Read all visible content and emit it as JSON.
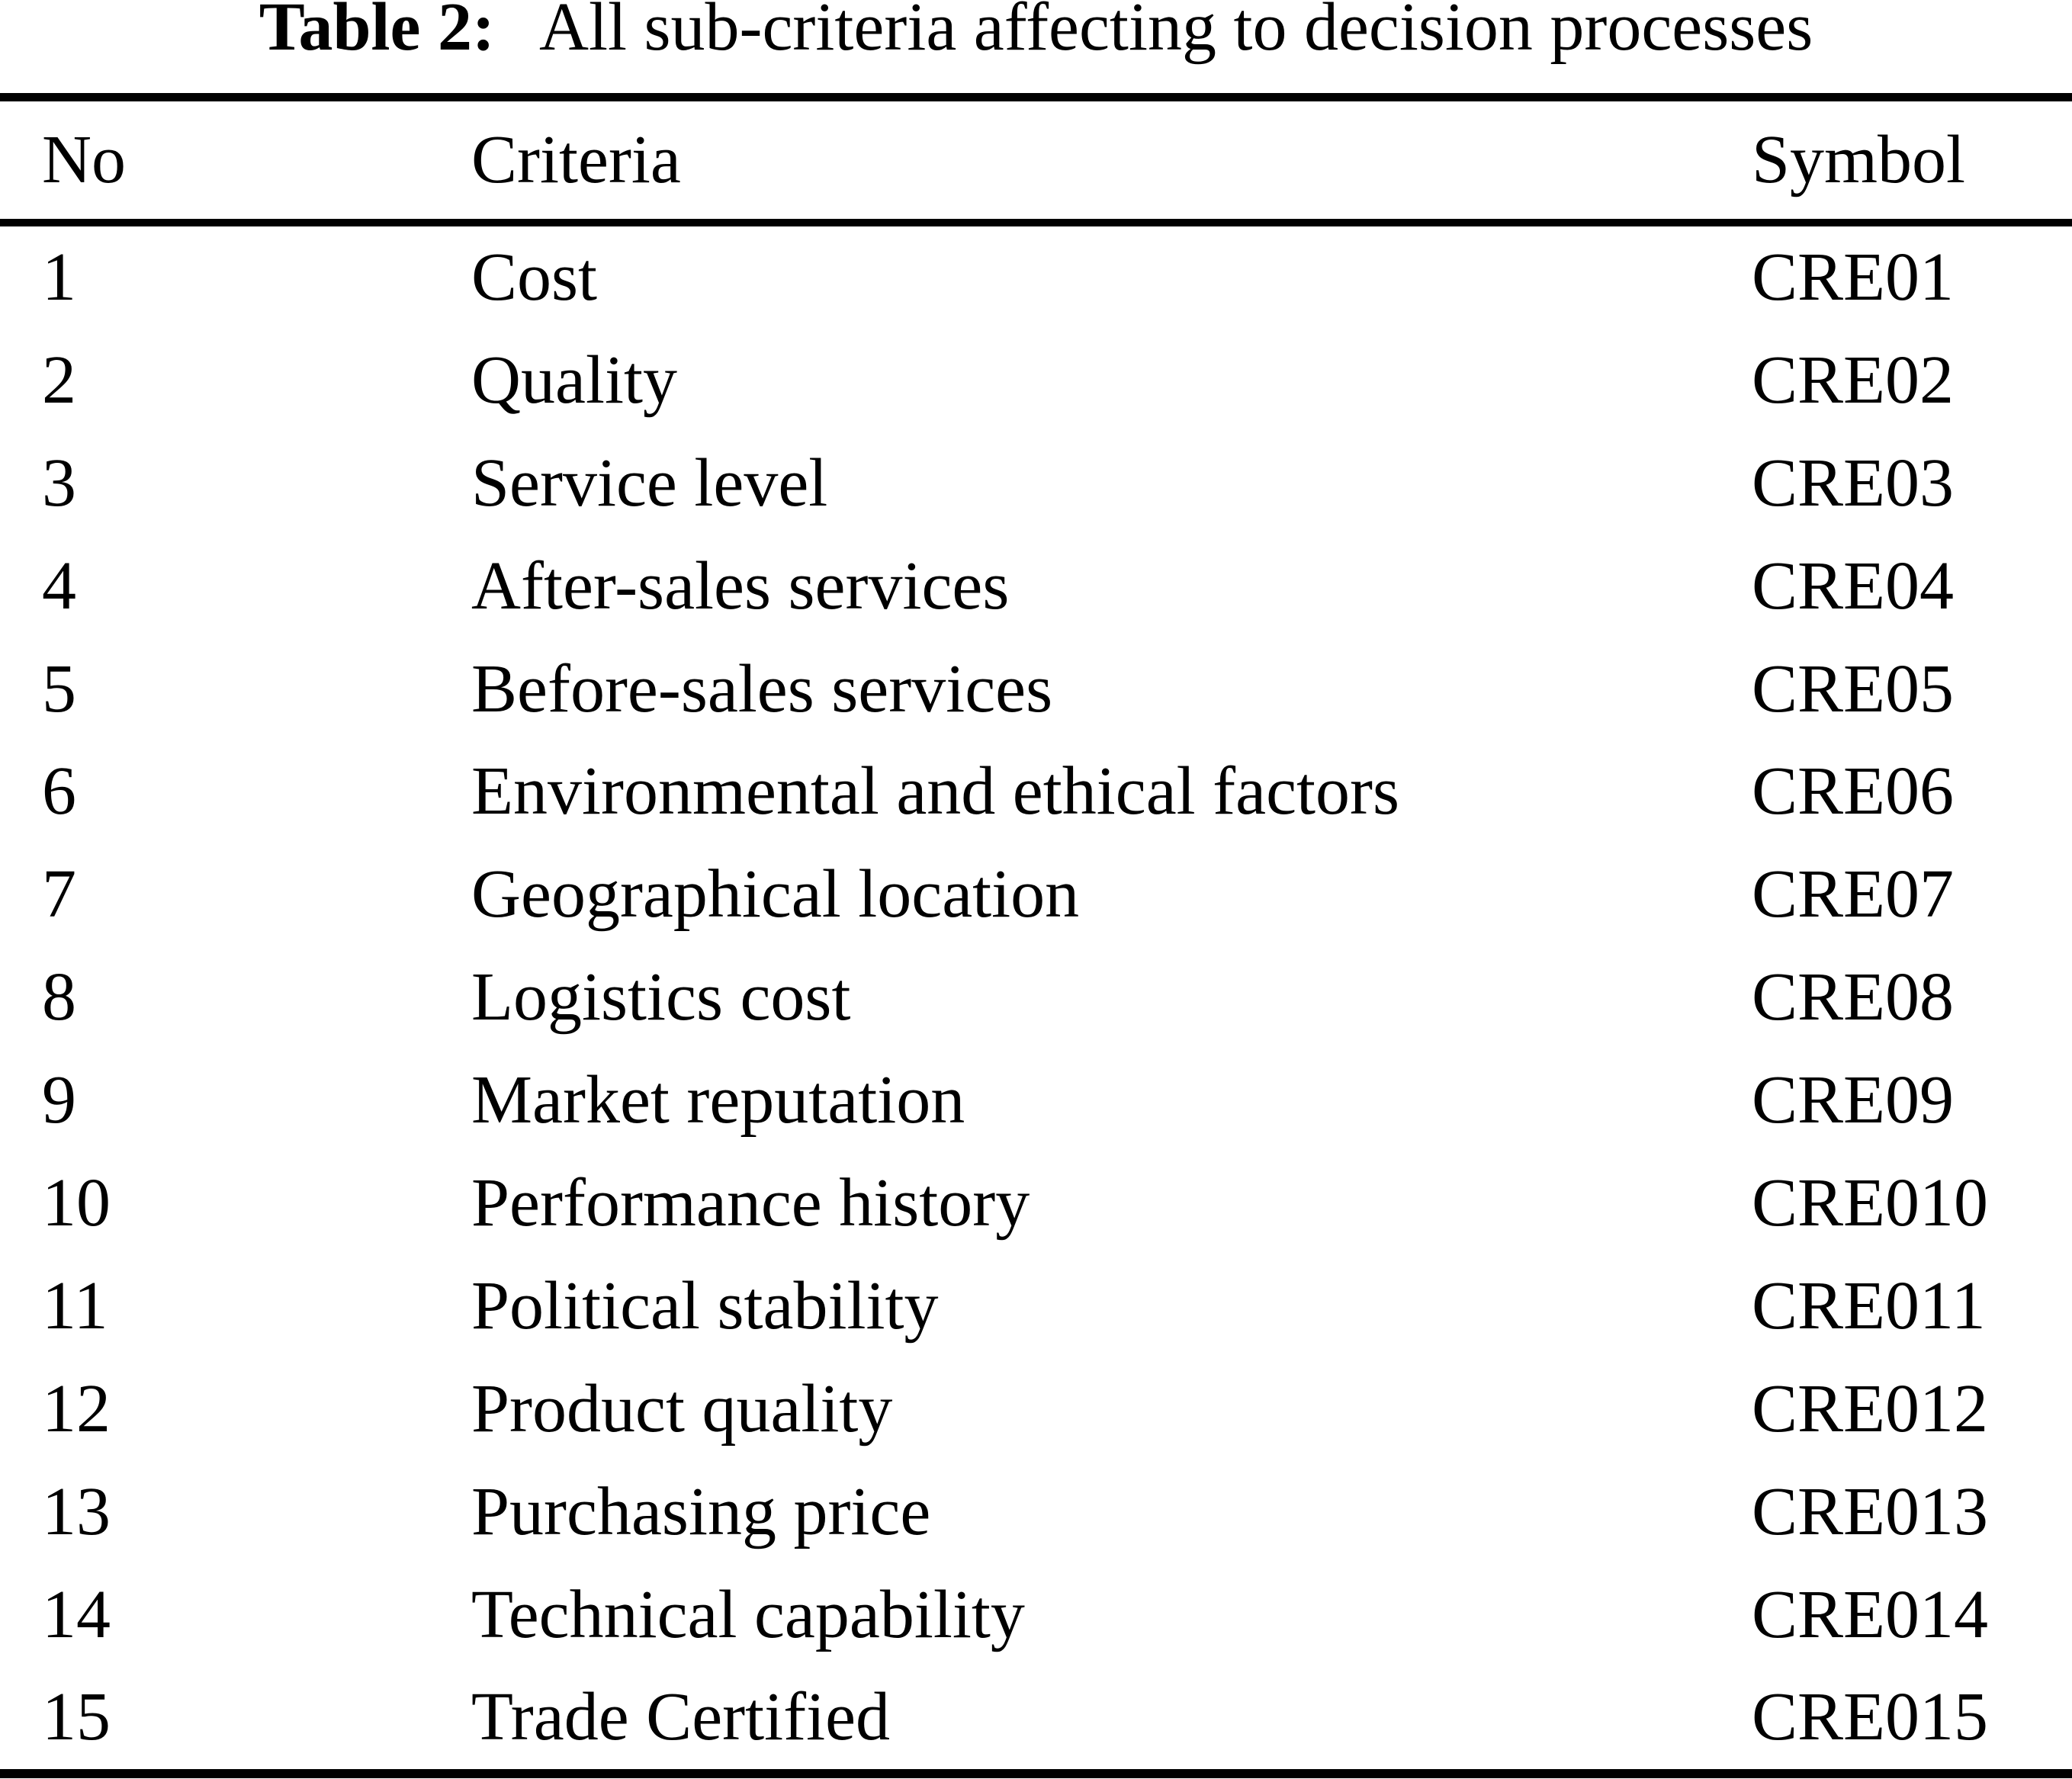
{
  "title": {
    "label": "Table 2:",
    "text": "All sub-criteria affecting to decision processes"
  },
  "table": {
    "columns": [
      "No",
      "Criteria",
      "Symbol"
    ],
    "rows": [
      {
        "no": "1",
        "criteria": "Cost",
        "symbol": "CRE01"
      },
      {
        "no": "2",
        "criteria": "Quality",
        "symbol": "CRE02"
      },
      {
        "no": "3",
        "criteria": "Service level",
        "symbol": "CRE03"
      },
      {
        "no": "4",
        "criteria": "After-sales services",
        "symbol": "CRE04"
      },
      {
        "no": "5",
        "criteria": "Before-sales services",
        "symbol": "CRE05"
      },
      {
        "no": "6",
        "criteria": "Environmental and ethical factors",
        "symbol": "CRE06"
      },
      {
        "no": "7",
        "criteria": "Geographical location",
        "symbol": "CRE07"
      },
      {
        "no": "8",
        "criteria": "Logistics cost",
        "symbol": "CRE08"
      },
      {
        "no": "9",
        "criteria": "Market reputation",
        "symbol": "CRE09"
      },
      {
        "no": "10",
        "criteria": "Performance history",
        "symbol": "CRE010"
      },
      {
        "no": "11",
        "criteria": "Political stability",
        "symbol": "CRE011"
      },
      {
        "no": "12",
        "criteria": "Product quality",
        "symbol": "CRE012"
      },
      {
        "no": "13",
        "criteria": "Purchasing price",
        "symbol": "CRE013"
      },
      {
        "no": "14",
        "criteria": "Technical capability",
        "symbol": "CRE014"
      },
      {
        "no": "15",
        "criteria": "Trade Certified",
        "symbol": "CRE015"
      }
    ],
    "colors": {
      "text": "#000000",
      "background": "#ffffff",
      "rule": "#000000"
    }
  }
}
